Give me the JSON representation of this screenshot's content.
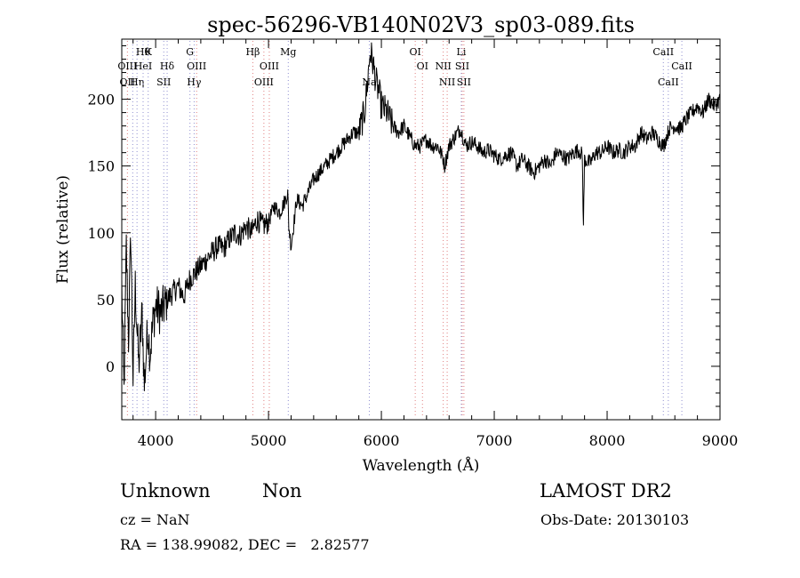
{
  "chart_data": {
    "type": "line",
    "title": "spec-56296-VB140N02V3_sp03-089.fits",
    "xlabel": "Wavelength (Å)",
    "ylabel": "Flux (relative)",
    "xlim": [
      3700,
      9000
    ],
    "ylim": [
      -40,
      245
    ],
    "x_ticks": [
      4000,
      5000,
      6000,
      7000,
      8000,
      9000
    ],
    "y_ticks": [
      0,
      50,
      100,
      150,
      200
    ],
    "grid": false,
    "series": [
      {
        "color": "#000000",
        "x": [
          3700,
          3720,
          3740,
          3760,
          3780,
          3800,
          3820,
          3850,
          3880,
          3900,
          3930,
          3950,
          3980,
          4000,
          4050,
          4100,
          4150,
          4200,
          4250,
          4300,
          4350,
          4400,
          4450,
          4500,
          4550,
          4600,
          4650,
          4700,
          4750,
          4800,
          4850,
          4900,
          4950,
          5000,
          5050,
          5100,
          5150,
          5170,
          5180,
          5200,
          5250,
          5300,
          5350,
          5400,
          5450,
          5500,
          5550,
          5600,
          5650,
          5700,
          5750,
          5800,
          5850,
          5880,
          5900,
          5920,
          5940,
          5960,
          5980,
          6000,
          6050,
          6100,
          6150,
          6200,
          6250,
          6300,
          6350,
          6400,
          6450,
          6500,
          6550,
          6560,
          6600,
          6650,
          6700,
          6750,
          6800,
          6850,
          6900,
          6950,
          7000,
          7050,
          7100,
          7150,
          7200,
          7250,
          7300,
          7350,
          7400,
          7450,
          7500,
          7550,
          7600,
          7650,
          7700,
          7750,
          7780,
          7790,
          7800,
          7850,
          7900,
          7950,
          8000,
          8050,
          8100,
          8150,
          8200,
          8250,
          8300,
          8350,
          8400,
          8450,
          8500,
          8550,
          8600,
          8650,
          8700,
          8750,
          8800,
          8850,
          8900,
          8950,
          9000
        ],
        "y": [
          60,
          -20,
          90,
          20,
          100,
          -10,
          60,
          0,
          40,
          -15,
          30,
          10,
          35,
          45,
          40,
          50,
          55,
          60,
          52,
          65,
          70,
          75,
          80,
          85,
          90,
          88,
          95,
          100,
          98,
          105,
          100,
          110,
          105,
          108,
          120,
          115,
          125,
          130,
          105,
          90,
          125,
          120,
          130,
          140,
          145,
          150,
          155,
          160,
          165,
          170,
          175,
          175,
          190,
          215,
          235,
          230,
          220,
          210,
          205,
          195,
          190,
          180,
          175,
          180,
          172,
          165,
          165,
          170,
          165,
          165,
          155,
          150,
          165,
          172,
          178,
          165,
          168,
          165,
          160,
          162,
          158,
          155,
          158,
          160,
          150,
          155,
          150,
          145,
          150,
          155,
          150,
          160,
          158,
          155,
          160,
          162,
          158,
          105,
          155,
          152,
          160,
          160,
          165,
          160,
          162,
          160,
          165,
          165,
          175,
          170,
          175,
          170,
          165,
          178,
          180,
          178,
          185,
          190,
          195,
          190,
          200,
          195,
          200
        ]
      }
    ],
    "line_marks": [
      {
        "x": 3750,
        "color": "#e08080",
        "labels": [
          {
            "text": "OIII",
            "row": 2
          },
          {
            "text": "OII",
            "row": 3
          }
        ]
      },
      {
        "x": 3797,
        "color": "#9090d0",
        "labels": []
      },
      {
        "x": 3835,
        "color": "#9090d0",
        "labels": [
          {
            "text": "Hη",
            "row": 3
          }
        ]
      },
      {
        "x": 3889,
        "color": "#9090d0",
        "labels": [
          {
            "text": "Hθ",
            "row": 1
          },
          {
            "text": "HeI",
            "row": 2
          }
        ]
      },
      {
        "x": 3934,
        "color": "#9090d0",
        "labels": [
          {
            "text": "K",
            "row": 1
          }
        ]
      },
      {
        "x": 4072,
        "color": "#9090d0",
        "labels": [
          {
            "text": "SII",
            "row": 3
          }
        ]
      },
      {
        "x": 4102,
        "color": "#9090d0",
        "labels": [
          {
            "text": "Hδ",
            "row": 2
          }
        ]
      },
      {
        "x": 4304,
        "color": "#9090d0",
        "labels": [
          {
            "text": "G",
            "row": 1
          }
        ]
      },
      {
        "x": 4341,
        "color": "#9090d0",
        "labels": [
          {
            "text": "Hγ",
            "row": 3
          }
        ]
      },
      {
        "x": 4363,
        "color": "#e08080",
        "labels": [
          {
            "text": "OIII",
            "row": 2
          }
        ]
      },
      {
        "x": 4861,
        "color": "#e08080",
        "labels": [
          {
            "text": "Hβ",
            "row": 1
          }
        ]
      },
      {
        "x": 4959,
        "color": "#e08080",
        "labels": [
          {
            "text": "OIII",
            "row": 3
          }
        ]
      },
      {
        "x": 5007,
        "color": "#e08080",
        "labels": [
          {
            "text": "OIII",
            "row": 2
          }
        ]
      },
      {
        "x": 5175,
        "color": "#9090d0",
        "labels": [
          {
            "text": "Mg",
            "row": 1
          }
        ]
      },
      {
        "x": 5893,
        "color": "#9090d0",
        "labels": [
          {
            "text": "Na",
            "row": 3
          }
        ]
      },
      {
        "x": 6300,
        "color": "#e08080",
        "labels": [
          {
            "text": "OI",
            "row": 1
          }
        ]
      },
      {
        "x": 6364,
        "color": "#e08080",
        "labels": [
          {
            "text": "OI",
            "row": 2
          }
        ]
      },
      {
        "x": 6548,
        "color": "#e08080",
        "labels": [
          {
            "text": "NII",
            "row": 2
          }
        ]
      },
      {
        "x": 6583,
        "color": "#e08080",
        "labels": [
          {
            "text": "NII",
            "row": 3
          }
        ]
      },
      {
        "x": 6708,
        "color": "#9090d0",
        "labels": [
          {
            "text": "Li",
            "row": 1
          }
        ]
      },
      {
        "x": 6716,
        "color": "#e08080",
        "labels": [
          {
            "text": "SII",
            "row": 2
          }
        ]
      },
      {
        "x": 6731,
        "color": "#e08080",
        "labels": [
          {
            "text": "SII",
            "row": 3
          }
        ]
      },
      {
        "x": 8498,
        "color": "#9090d0",
        "labels": [
          {
            "text": "CaII",
            "row": 1
          }
        ]
      },
      {
        "x": 8542,
        "color": "#9090d0",
        "labels": [
          {
            "text": "CaII",
            "row": 3
          }
        ]
      },
      {
        "x": 8662,
        "color": "#9090d0",
        "labels": [
          {
            "text": "CaII",
            "row": 2
          }
        ]
      }
    ]
  },
  "info": {
    "class": "Unknown",
    "subclass": "Non",
    "survey": "LAMOST DR2",
    "cz": "cz = NaN",
    "obs_date": "Obs-Date: 20130103",
    "radec": "RA = 138.99082, DEC =   2.82577"
  }
}
